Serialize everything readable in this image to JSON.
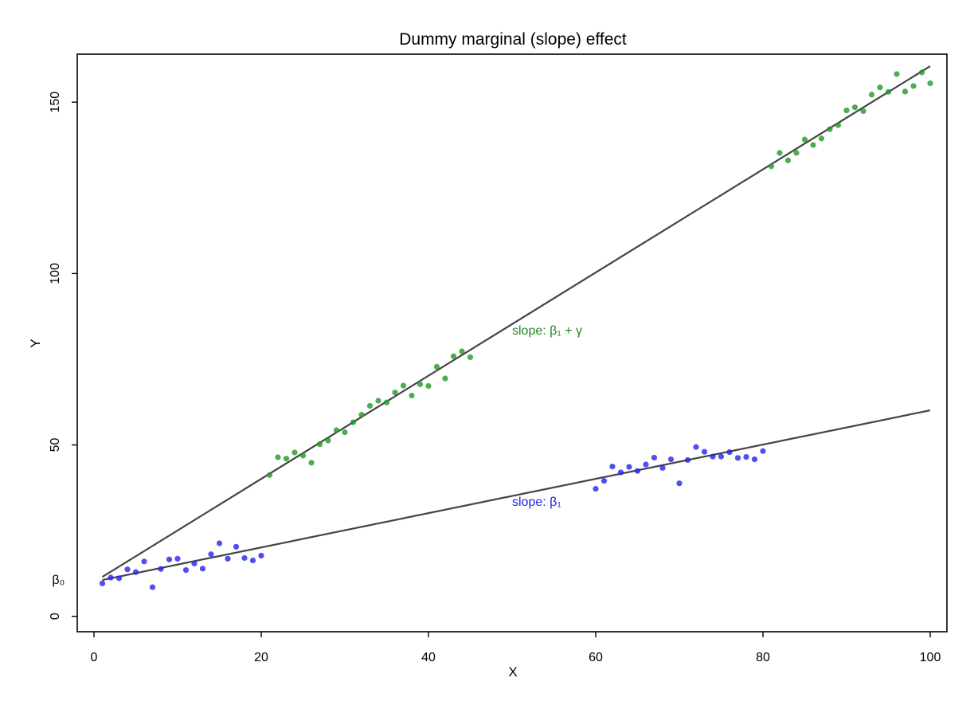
{
  "chart_data": {
    "type": "scatter",
    "title": "Dummy marginal (slope) effect",
    "xlabel": "X",
    "ylabel": "Y",
    "xlim": [
      -2,
      102
    ],
    "ylim": [
      -4.5,
      164
    ],
    "xticks": [
      0,
      20,
      40,
      60,
      80,
      100
    ],
    "xtick_labels": [
      "0",
      "20",
      "40",
      "60",
      "80",
      "100"
    ],
    "yticks": [
      0,
      50,
      100,
      150
    ],
    "ytick_labels": [
      "0",
      "50",
      "100",
      "150"
    ],
    "grid": false,
    "legend": "none",
    "series": [
      {
        "color": "#2222ee",
        "x": [
          1,
          2,
          3,
          4,
          5,
          6,
          7,
          8,
          9,
          10,
          11,
          12,
          13,
          14,
          15,
          16,
          17,
          18,
          19,
          20,
          60,
          61,
          62,
          63,
          64,
          65,
          66,
          67,
          68,
          69,
          70,
          71,
          72,
          73,
          74,
          75,
          76,
          77,
          78,
          79,
          80
        ],
        "y": [
          9.6,
          11.3,
          11.1,
          13.7,
          12.9,
          16.0,
          8.5,
          13.8,
          16.6,
          16.8,
          13.5,
          15.4,
          13.9,
          18.1,
          21.3,
          16.8,
          20.3,
          17.0,
          16.3,
          17.7,
          37.2,
          39.5,
          43.7,
          42.0,
          43.6,
          42.4,
          44.3,
          46.3,
          43.3,
          45.8,
          38.8,
          45.6,
          49.4,
          48.0,
          46.6,
          46.6,
          47.9,
          46.2,
          46.5,
          45.8,
          48.2
        ]
      },
      {
        "color": "#229922",
        "x": [
          21,
          22,
          23,
          24,
          25,
          26,
          27,
          28,
          29,
          30,
          31,
          32,
          33,
          34,
          35,
          36,
          37,
          38,
          39,
          40,
          41,
          42,
          43,
          44,
          45,
          81,
          82,
          83,
          84,
          85,
          86,
          87,
          88,
          89,
          90,
          91,
          92,
          93,
          94,
          95,
          96,
          97,
          98,
          99,
          100
        ],
        "y": [
          41.2,
          46.4,
          46.0,
          47.8,
          46.9,
          44.8,
          50.2,
          51.3,
          54.3,
          53.7,
          56.6,
          58.8,
          61.4,
          62.9,
          62.4,
          65.3,
          67.3,
          64.4,
          67.7,
          67.2,
          72.8,
          69.4,
          75.9,
          77.3,
          75.6,
          131.3,
          135.2,
          133.0,
          135.2,
          139.1,
          137.5,
          139.4,
          142.1,
          143.3,
          147.6,
          148.5,
          147.4,
          152.2,
          154.3,
          153.0,
          158.2,
          153.1,
          154.7,
          158.7,
          155.5
        ]
      }
    ],
    "fit_lines": [
      {
        "color": "#444444",
        "x": [
          1,
          100
        ],
        "y": [
          10.6,
          60.1
        ]
      },
      {
        "color": "#444444",
        "x": [
          1,
          100
        ],
        "y": [
          11.5,
          160.5
        ]
      }
    ],
    "annotations": [
      {
        "text": "β₀",
        "x": -3.5,
        "y": 9.4,
        "color": "#000000",
        "anchor": "end"
      },
      {
        "text": "slope: β₁",
        "x": 50,
        "y": 32.2,
        "color": "#2222ee",
        "anchor": "start"
      },
      {
        "text": "slope: β₁ + γ",
        "x": 50,
        "y": 82.2,
        "color": "#228822",
        "anchor": "start"
      }
    ]
  }
}
